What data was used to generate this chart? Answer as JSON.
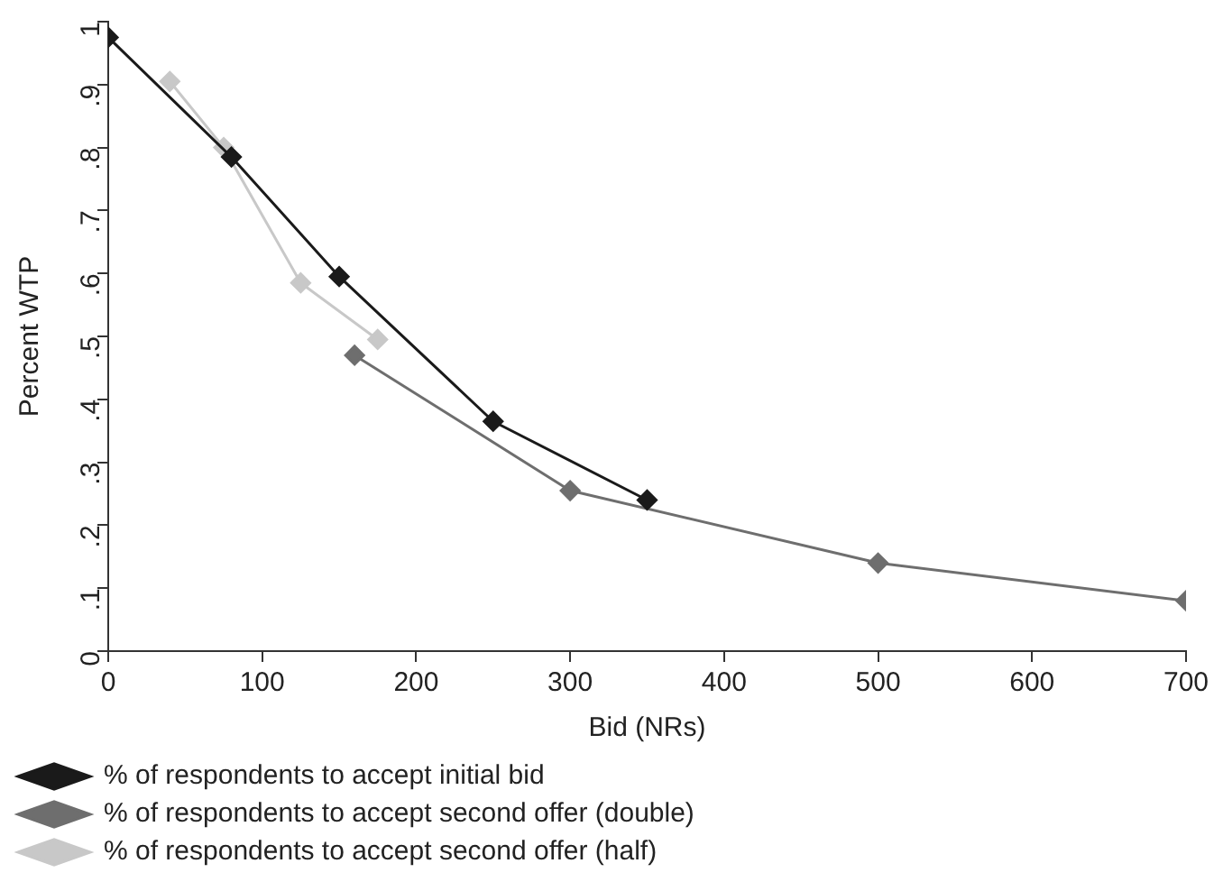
{
  "chart_data": {
    "type": "line",
    "xlabel": "Bid (NRs)",
    "ylabel": "Percent WTP",
    "series": [
      {
        "name": "% of respondents to accept initial bid",
        "color": "#1a1a1a",
        "x": [
          0,
          80,
          150,
          250,
          350
        ],
        "values": [
          0.975,
          0.785,
          0.595,
          0.365,
          0.24
        ]
      },
      {
        "name": "% of respondents to accept second offer (double)",
        "color": "#6e6e6e",
        "x": [
          160,
          300,
          500,
          700
        ],
        "values": [
          0.47,
          0.255,
          0.14,
          0.08
        ]
      },
      {
        "name": "% of respondents to accept second offer (half)",
        "color": "#c8c8c8",
        "x": [
          40,
          75,
          125,
          175
        ],
        "values": [
          0.905,
          0.8,
          0.585,
          0.495
        ]
      }
    ],
    "xlim": [
      0,
      700
    ],
    "xticks": [
      0,
      100,
      200,
      300,
      400,
      500,
      600,
      700
    ],
    "ylim": [
      0,
      1
    ],
    "yticks": [
      0,
      {
        "value": 0.1,
        "label": ".1"
      },
      {
        "value": 0.2,
        "label": ".2"
      },
      {
        "value": 0.3,
        "label": ".3"
      },
      {
        "value": 0.4,
        "label": ".4"
      },
      {
        "value": 0.5,
        "label": ".5"
      },
      {
        "value": 0.6,
        "label": ".6"
      },
      {
        "value": 0.7,
        "label": ".7"
      },
      {
        "value": 0.8,
        "label": ".8"
      },
      {
        "value": 0.9,
        "label": ".9"
      },
      1
    ],
    "grid": false,
    "legend": "bottom",
    "marker": "diamond",
    "line_style": "solid"
  }
}
